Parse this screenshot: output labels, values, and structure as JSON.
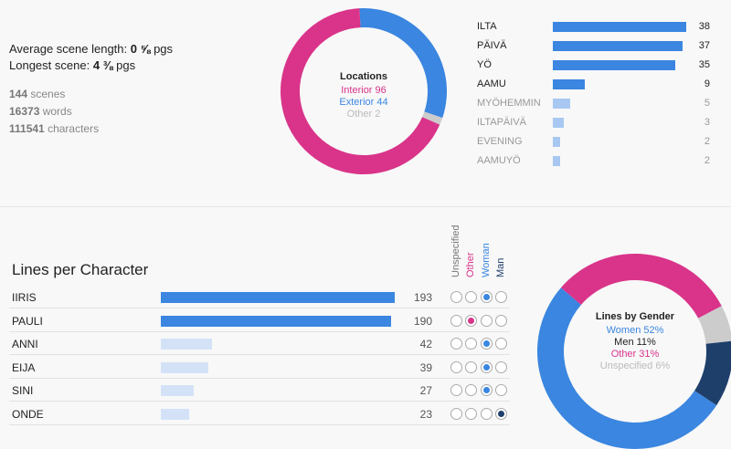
{
  "stats": {
    "avg_label": "Average scene length:",
    "avg_value": "0 ⅝",
    "longest_label": "Longest scene:",
    "longest_value": "4 ⅜",
    "pgs": "pgs",
    "scenes_count": "144",
    "scenes_label": "scenes",
    "words_count": "16373",
    "words_label": "words",
    "chars_count": "111541",
    "chars_label": "characters"
  },
  "locations": {
    "title": "Locations",
    "items": [
      {
        "label": "Interior 96",
        "name": "Interior",
        "value": 96,
        "color": "#d9348a"
      },
      {
        "label": "Exterior 44",
        "name": "Exterior",
        "value": 44,
        "color": "#3a86e0"
      },
      {
        "label": "Other 2",
        "name": "Other",
        "value": 2,
        "color": "#cccccc"
      }
    ]
  },
  "times": [
    {
      "label": "ILTA",
      "value": 38
    },
    {
      "label": "PÄIVÄ",
      "value": 37
    },
    {
      "label": "YÖ",
      "value": 35
    },
    {
      "label": "AAMU",
      "value": 9
    },
    {
      "label": "MYÖHEMMIN",
      "value": 5
    },
    {
      "label": "ILTAPÄIVÄ",
      "value": 3
    },
    {
      "label": "EVENING",
      "value": 2
    },
    {
      "label": "AAMUYÖ",
      "value": 2
    }
  ],
  "lines": {
    "title": "Lines per Character",
    "gender_headers": [
      {
        "label": "Unspecified",
        "color": "#777777"
      },
      {
        "label": "Other",
        "color": "#d9348a"
      },
      {
        "label": "Woman",
        "color": "#3a86e0"
      },
      {
        "label": "Man",
        "color": "#1f3f6b"
      }
    ],
    "characters": [
      {
        "name": "IIRIS",
        "value": 193,
        "gender": 2
      },
      {
        "name": "PAULI",
        "value": 190,
        "gender": 1
      },
      {
        "name": "ANNI",
        "value": 42,
        "gender": 2
      },
      {
        "name": "EIJA",
        "value": 39,
        "gender": 2
      },
      {
        "name": "SINI",
        "value": 27,
        "gender": 2
      },
      {
        "name": "ONDE",
        "value": 23,
        "gender": 3
      }
    ]
  },
  "gender": {
    "title": "Lines by Gender",
    "items": [
      {
        "label": "Women 52%",
        "value": 52,
        "color": "#3a86e0"
      },
      {
        "label": "Men 11%",
        "value": 11,
        "color": "#1f3f6b"
      },
      {
        "label": "Other 31%",
        "value": 31,
        "color": "#d9348a"
      },
      {
        "label": "Unspecified 6%",
        "value": 6,
        "color": "#cccccc"
      }
    ]
  }
}
